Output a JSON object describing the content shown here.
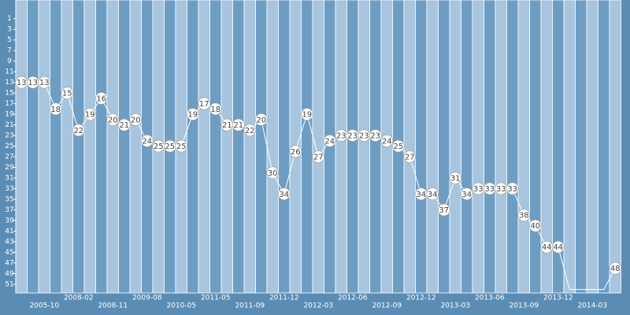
{
  "chart_data": {
    "type": "line",
    "categories": [
      null,
      null,
      "2005-10",
      null,
      null,
      "2008-02",
      null,
      null,
      "2008-11",
      null,
      null,
      "2009-08",
      null,
      null,
      "2010-05",
      null,
      null,
      "2011-05",
      null,
      null,
      "2011-09",
      null,
      null,
      "2011-12",
      null,
      null,
      "2012-03",
      null,
      null,
      "2012-06",
      null,
      null,
      "2012-09",
      null,
      null,
      "2012-12",
      null,
      null,
      "2013-03",
      null,
      null,
      "2013-06",
      null,
      null,
      "2013-09",
      null,
      null,
      "2013-12",
      null,
      null,
      "2014-03",
      null,
      null
    ],
    "series": [
      {
        "color": "#ffffff",
        "values": [
          13,
          13,
          13,
          18,
          15,
          22,
          19,
          16,
          20,
          21,
          20,
          24,
          25,
          25,
          25,
          19,
          17,
          18,
          21,
          21,
          22,
          20,
          30,
          34,
          26,
          19,
          27,
          24,
          23,
          23,
          23,
          23,
          24,
          25,
          27,
          34,
          34,
          37,
          31,
          34,
          33,
          33,
          33,
          33,
          38,
          40,
          44,
          44,
          52,
          52,
          52,
          52,
          48
        ]
      }
    ],
    "ylim": [
      0,
      52.5
    ],
    "y_inverted": true,
    "yticks": [
      1,
      3,
      5,
      7,
      9,
      11,
      13,
      15,
      17,
      19,
      21,
      23,
      25,
      27,
      29,
      31,
      33,
      35,
      37,
      39,
      41,
      43,
      45,
      47,
      49,
      51
    ]
  }
}
